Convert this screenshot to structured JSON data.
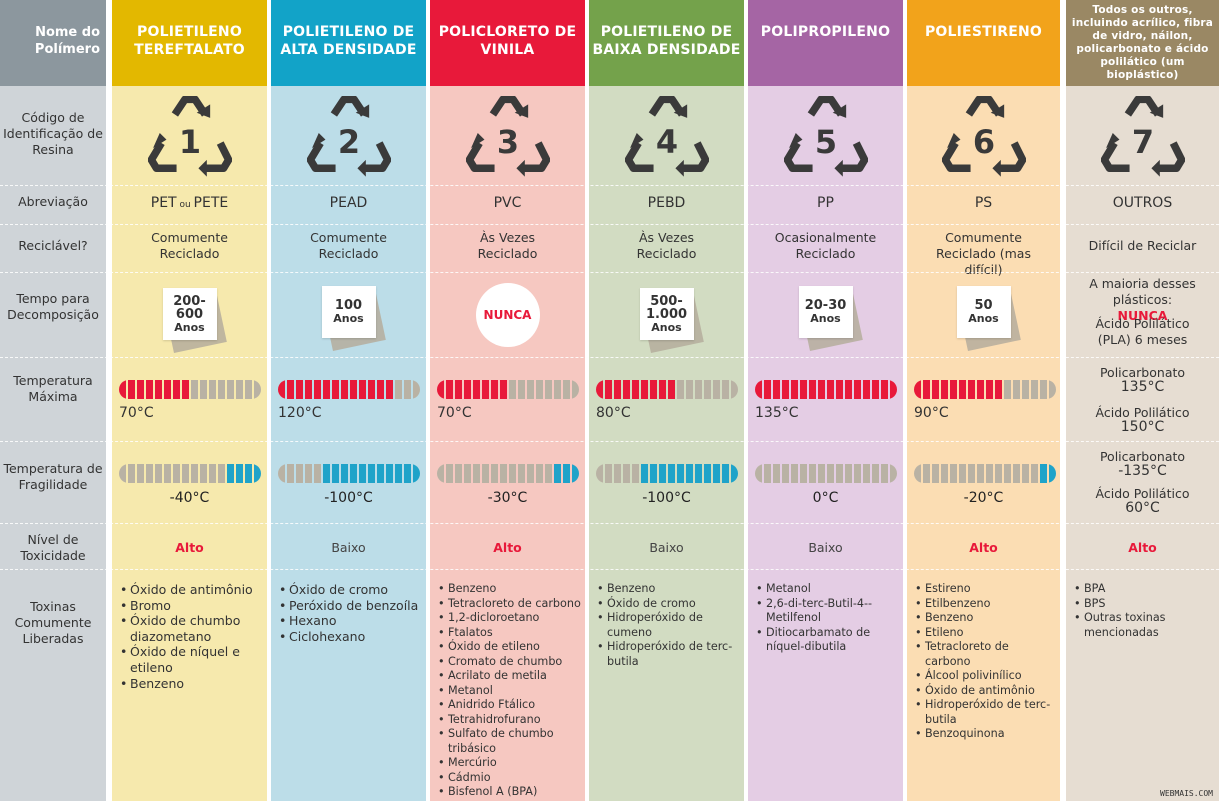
{
  "row_labels": {
    "header": "Nome do Polímero",
    "code": "Código de Identificação de Resina",
    "abbr": "Abreviação",
    "recyclable": "Reciclável?",
    "decomp": "Tempo para Decomposição",
    "tmax": "Temperatura Máxima",
    "tfrag": "Temperatura de Fragilidade",
    "tox": "Nível de Toxicidade",
    "toxins": "Toxinas Comumente Liberadas"
  },
  "colors": {
    "label_col_bg": "#cfd4d8",
    "label_head_bg": "#8c979e",
    "bar_red": "#e8193a",
    "bar_blue": "#1fa3c9",
    "bar_grey": "#b9b2a4",
    "alto_red": "#e8193a"
  },
  "columns": [
    {
      "name": "POLIETILENO TEREFTALATO",
      "head_color": "#e3b800",
      "bg": "#f6e9ad",
      "code": "1",
      "abbr_main": "PET",
      "abbr_sep": "ou",
      "abbr_alt": "PETE",
      "recyclable": "Comumente Reciclado",
      "decomp_line1": "200-",
      "decomp_line2": "600",
      "decomp_unit": "Anos",
      "tmax_label": "70°C",
      "tmax_red": 8,
      "tfrag_label": "-40°C",
      "tfrag_blue": 4,
      "tox": "Alto",
      "tox_level": "high",
      "toxins": [
        "Óxido de antimônio",
        "Bromo",
        "Óxido de chumbo diazometano",
        "Óxido de níquel e etileno",
        "Benzeno"
      ]
    },
    {
      "name": "POLIETILENO DE ALTA DENSIDADE",
      "head_color": "#12a3c8",
      "bg": "#bcdde8",
      "code": "2",
      "abbr_main": "PEAD",
      "recyclable": "Comumente Reciclado",
      "decomp_line1": "100",
      "decomp_line2": "",
      "decomp_unit": "Anos",
      "tmax_label": "120°C",
      "tmax_red": 13,
      "tfrag_label": "-100°C",
      "tfrag_blue": 11,
      "tox": "Baixo",
      "tox_level": "low",
      "toxins": [
        "Óxido de cromo",
        "Peróxido de benzoíla",
        "Hexano",
        "Ciclohexano"
      ]
    },
    {
      "name": "POLICLORETO DE VINILA",
      "head_color": "#e8193a",
      "bg": "#f6c8c1",
      "code": "3",
      "abbr_main": "PVC",
      "recyclable": "Às Vezes Reciclado",
      "decomp_special": "NUNCA",
      "tmax_label": "70°C",
      "tmax_red": 8,
      "tfrag_label": "-30°C",
      "tfrag_blue": 3,
      "tox": "Alto",
      "tox_level": "high",
      "toxins": [
        "Benzeno",
        "Tetracloreto de carbono",
        "1,2-dicloroetano",
        "Ftalatos",
        "Óxido de etileno",
        "Cromato de chumbo",
        "Acrilato de metila",
        "Metanol",
        "Anidrido Ftálico",
        "Tetrahidrofurano",
        "Sulfato de chumbo tribásico",
        "Mercúrio",
        "Cádmio",
        "Bisfenol A (BPA)"
      ]
    },
    {
      "name": "POLIETILENO DE BAIXA DENSIDADE",
      "head_color": "#74a24b",
      "bg": "#d2dcc2",
      "code": "4",
      "abbr_main": "PEBD",
      "recyclable": "Às Vezes Reciclado",
      "decomp_line1": "500-",
      "decomp_line2": "1.000",
      "decomp_unit": "Anos",
      "tmax_label": "80°C",
      "tmax_red": 9,
      "tfrag_label": "-100°C",
      "tfrag_blue": 11,
      "tox": "Baixo",
      "tox_level": "low",
      "toxins": [
        "Benzeno",
        "Óxido de cromo",
        "Hidroperóxido de cumeno",
        "Hidroperóxido de terc-butila"
      ]
    },
    {
      "name": "POLIPROPILENO",
      "head_color": "#a565a4",
      "bg": "#e4cde4",
      "code": "5",
      "abbr_main": "PP",
      "recyclable": "Ocasionalmente Reciclado",
      "decomp_line1": "20-30",
      "decomp_line2": "",
      "decomp_unit": "Anos",
      "tmax_label": "135°C",
      "tmax_red": 16,
      "tfrag_label": "0°C",
      "tfrag_blue": 0,
      "tox": "Baixo",
      "tox_level": "low",
      "toxins": [
        "Metanol",
        "2,6-di-terc-Butil-4--Metilfenol",
        "Ditiocarbamato de níquel-dibutila"
      ]
    },
    {
      "name": "POLIESTIRENO",
      "head_color": "#f2a31b",
      "bg": "#fbddb3",
      "code": "6",
      "abbr_main": "PS",
      "recyclable": "Comumente Reciclado (mas difícil)",
      "decomp_line1": "50",
      "decomp_line2": "",
      "decomp_unit": "Anos",
      "tmax_label": "90°C",
      "tmax_red": 10,
      "tfrag_label": "-20°C",
      "tfrag_blue": 2,
      "tox": "Alto",
      "tox_level": "high",
      "toxins": [
        "Estireno",
        "Etilbenzeno",
        "Benzeno",
        "Etileno",
        "Tetracloreto de carbono",
        "Álcool polivinílico",
        "Óxido de antimônio",
        "Hidroperóxido de terc-butila",
        "Benzoquinona"
      ]
    },
    {
      "name": "Todos os outros, incluindo acrílico, fibra de vidro, náilon, policarbonato e ácido polilático (um bioplástico)",
      "head_color": "#9a8864",
      "bg": "#e6ddd2",
      "code": "7",
      "abbr_main": "OUTROS",
      "recyclable": "Difícil de Reciclar",
      "decomp_text1": "A maioria desses plásticos:",
      "decomp_nunca": "NUNCA",
      "decomp_text2": "Ácido Polilático (PLA) 6 meses",
      "tmax_pc_label": "Policarbonato",
      "tmax_pc_val": "135°C",
      "tmax_pla_label": "Ácido Polilático",
      "tmax_pla_val": "150°C",
      "tfrag_pc_label": "Policarbonato",
      "tfrag_pc_val": "-135°C",
      "tfrag_pla_label": "Ácido Polilático",
      "tfrag_pla_val": "60°C",
      "tox": "Alto",
      "tox_level": "high",
      "toxins": [
        "BPA",
        "BPS",
        "Outras toxinas mencionadas"
      ]
    }
  ],
  "brand": "WEBMAIS.COM"
}
